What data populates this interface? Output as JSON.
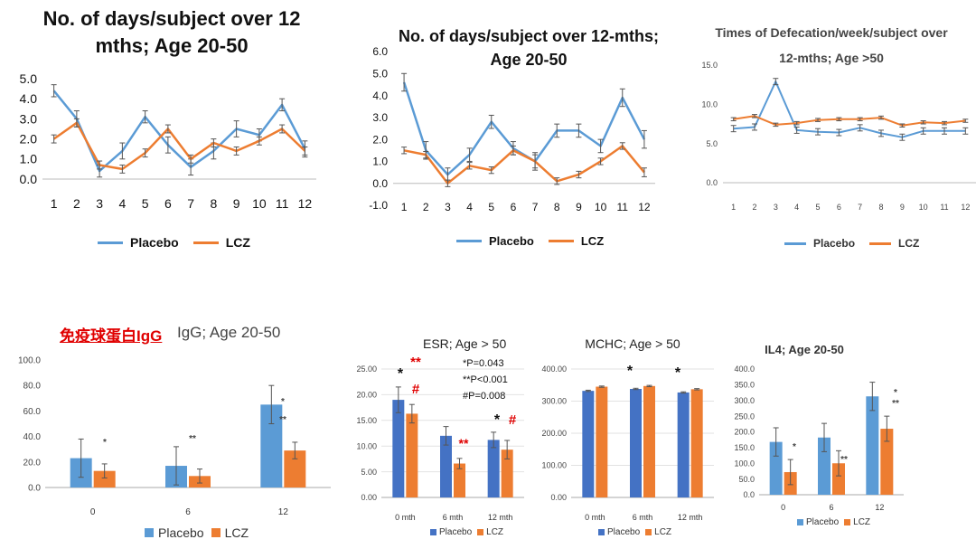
{
  "colors": {
    "placebo_line": "#5b9bd5",
    "lcz_line": "#ed7d31",
    "placebo_bar": "#5b9bd5",
    "placebo_bar2": "#4472c4",
    "lcz_bar": "#ed7d31",
    "red_mark": "#e00000"
  },
  "legend": {
    "placebo": "Placebo",
    "lcz": "LCZ"
  },
  "chart_data": [
    {
      "id": "days-20-50-a",
      "type": "line",
      "title_line1": "No. of days/subject over 12",
      "title_line2": "mths; Age 20-50",
      "categories": [
        "1",
        "2",
        "3",
        "4",
        "5",
        "6",
        "7",
        "8",
        "9",
        "10",
        "11",
        "12"
      ],
      "ylim": [
        0,
        5
      ],
      "yticks": [
        "0.0",
        "1.0",
        "2.0",
        "3.0",
        "4.0",
        "5.0"
      ],
      "series": [
        {
          "name": "Placebo",
          "values": [
            4.4,
            3.0,
            0.4,
            1.4,
            3.1,
            1.7,
            0.6,
            1.4,
            2.5,
            2.2,
            3.7,
            1.5
          ],
          "errors": [
            0.3,
            0.4,
            0.3,
            0.4,
            0.3,
            0.4,
            0.4,
            0.4,
            0.4,
            0.3,
            0.3,
            0.4
          ]
        },
        {
          "name": "LCZ",
          "values": [
            2.0,
            2.8,
            0.7,
            0.5,
            1.3,
            2.5,
            1.0,
            1.8,
            1.4,
            1.9,
            2.5,
            1.4
          ],
          "errors": [
            0.2,
            0.2,
            0.2,
            0.2,
            0.2,
            0.2,
            0.2,
            0.2,
            0.2,
            0.2,
            0.2,
            0.2
          ]
        }
      ]
    },
    {
      "id": "days-20-50-b",
      "type": "line",
      "title_line1": "No. of days/subject over 12-mths;",
      "title_line2": "Age 20-50",
      "categories": [
        "1",
        "2",
        "3",
        "4",
        "5",
        "6",
        "7",
        "8",
        "9",
        "10",
        "11",
        "12"
      ],
      "ylim": [
        -1,
        6
      ],
      "yticks": [
        "-1.0",
        "0.0",
        "1.0",
        "2.0",
        "3.0",
        "4.0",
        "5.0",
        "6.0"
      ],
      "series": [
        {
          "name": "Placebo",
          "values": [
            4.6,
            1.5,
            0.4,
            1.3,
            2.8,
            1.6,
            1.0,
            2.4,
            2.4,
            1.7,
            3.9,
            2.0
          ],
          "errors": [
            0.4,
            0.4,
            0.3,
            0.3,
            0.3,
            0.3,
            0.3,
            0.3,
            0.3,
            0.3,
            0.4,
            0.4
          ]
        },
        {
          "name": "LCZ",
          "values": [
            1.5,
            1.3,
            0.0,
            0.8,
            0.6,
            1.5,
            1.0,
            0.1,
            0.4,
            1.0,
            1.7,
            0.5
          ],
          "errors": [
            0.15,
            0.15,
            0.15,
            0.15,
            0.15,
            0.2,
            0.4,
            0.15,
            0.15,
            0.15,
            0.15,
            0.2
          ]
        }
      ]
    },
    {
      "id": "defecation-gt50",
      "type": "line",
      "title_line1": "Times of Defecation/week/subject over",
      "title_line2": "12-mths; Age >50",
      "categories": [
        "1",
        "2",
        "3",
        "4",
        "5",
        "6",
        "7",
        "8",
        "9",
        "10",
        "11",
        "12"
      ],
      "ylim": [
        0,
        15
      ],
      "yticks": [
        "0.0",
        "5.0",
        "10.0",
        "15.0"
      ],
      "series": [
        {
          "name": "Placebo",
          "values": [
            6.9,
            7.1,
            12.9,
            6.7,
            6.5,
            6.4,
            7.0,
            6.3,
            5.8,
            6.6,
            6.6,
            6.6
          ],
          "errors": [
            0.4,
            0.4,
            0.4,
            0.4,
            0.4,
            0.4,
            0.4,
            0.4,
            0.4,
            0.4,
            0.4,
            0.4
          ]
        },
        {
          "name": "LCZ",
          "values": [
            8.1,
            8.5,
            7.4,
            7.6,
            8.0,
            8.1,
            8.1,
            8.3,
            7.3,
            7.7,
            7.6,
            7.9
          ],
          "errors": [
            0.2,
            0.2,
            0.2,
            0.2,
            0.2,
            0.2,
            0.2,
            0.2,
            0.2,
            0.2,
            0.2,
            0.2
          ]
        }
      ]
    },
    {
      "id": "igg",
      "type": "bar",
      "title_red": "免疫球蛋白IgG",
      "title": "IgG; Age 20-50",
      "categories": [
        "0",
        "6",
        "12"
      ],
      "ylim": [
        0,
        100
      ],
      "yticks": [
        "0.0",
        "20.0",
        "40.0",
        "60.0",
        "80.0",
        "100.0"
      ],
      "series": [
        {
          "name": "Placebo",
          "values": [
            23.0,
            17.0,
            65.0
          ],
          "errors": [
            15.0,
            15.0,
            15.0
          ]
        },
        {
          "name": "LCZ",
          "values": [
            13.0,
            9.0,
            29.0
          ],
          "errors": [
            5.5,
            5.5,
            6.5
          ]
        }
      ],
      "marks": [
        "*",
        "**",
        "*",
        "**"
      ]
    },
    {
      "id": "esr",
      "type": "bar",
      "title": "ESR; Age > 50",
      "categories": [
        "0 mth",
        "6 mth",
        "12 mth"
      ],
      "ylim": [
        0,
        25
      ],
      "yticks": [
        "0.00",
        "5.00",
        "10.00",
        "15.00",
        "20.00",
        "25.00"
      ],
      "series": [
        {
          "name": "Placebo",
          "values": [
            19.0,
            12.0,
            11.2
          ],
          "errors": [
            2.5,
            1.8,
            1.5
          ]
        },
        {
          "name": "LCZ",
          "values": [
            16.3,
            6.6,
            9.3
          ],
          "errors": [
            1.8,
            1.0,
            1.8
          ]
        }
      ],
      "annotations": [
        "*P=0.043",
        "**P<0.001",
        "#P=0.008"
      ],
      "marks": [
        "*",
        "**",
        "#",
        "**",
        "*",
        "#"
      ]
    },
    {
      "id": "mchc",
      "type": "bar",
      "title": "MCHC; Age > 50",
      "categories": [
        "0 mth",
        "6 mth",
        "12 mth"
      ],
      "ylim": [
        0,
        400
      ],
      "yticks": [
        "0.00",
        "100.00",
        "200.00",
        "300.00",
        "400.00"
      ],
      "series": [
        {
          "name": "Placebo",
          "values": [
            332,
            338,
            327
          ],
          "errors": [
            2,
            2,
            2
          ]
        },
        {
          "name": "LCZ",
          "values": [
            345,
            347,
            337
          ],
          "errors": [
            2,
            2,
            2
          ]
        }
      ],
      "marks": [
        "*",
        "*"
      ]
    },
    {
      "id": "il4",
      "type": "bar",
      "title": "IL4; Age 20-50",
      "categories": [
        "0",
        "6",
        "12"
      ],
      "ylim": [
        0,
        400
      ],
      "yticks": [
        "0.0",
        "50.0",
        "100.0",
        "150.0",
        "200.0",
        "250.0",
        "300.0",
        "350.0",
        "400.0"
      ],
      "series": [
        {
          "name": "Placebo",
          "values": [
            168,
            182,
            313
          ],
          "errors": [
            45,
            45,
            45
          ]
        },
        {
          "name": "LCZ",
          "values": [
            72,
            100,
            210
          ],
          "errors": [
            40,
            40,
            40
          ]
        }
      ],
      "marks": [
        "*",
        "**",
        "*",
        "**"
      ]
    }
  ]
}
